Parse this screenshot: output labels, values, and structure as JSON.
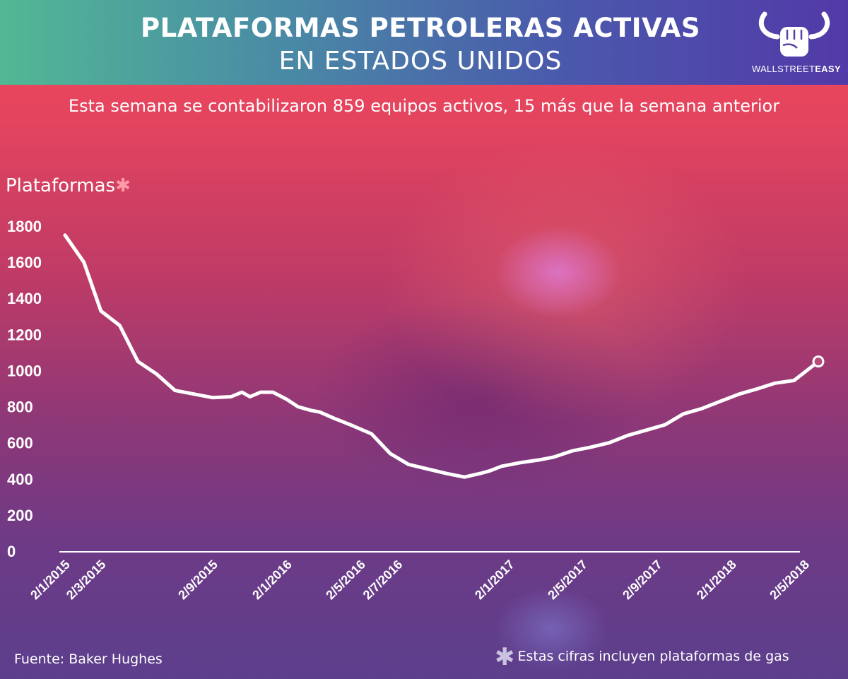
{
  "header": {
    "title_line1": "PLATAFORMAS PETROLERAS ACTIVAS",
    "title_line2": "EN ESTADOS UNIDOS"
  },
  "logo": {
    "icon": "fist-bull-horns-icon",
    "text_light": "WALLSTREET",
    "text_bold": "EASY"
  },
  "subtitle": "Esta semana se contabilizaron 859 equipos activos, 15 más que la semana anterior",
  "footer": {
    "source": "Fuente: Baker Hughes",
    "note_star": "✱",
    "note": "Estas cifras incluyen plataformas de gas"
  },
  "colors": {
    "line": "#ffffff",
    "header_left": "#52b894",
    "header_right": "#5239a8",
    "background_top": "#f04a5a",
    "background_bottom": "#5c3f8c",
    "asterisk": "#ff9aa8"
  },
  "chart_data": {
    "type": "line",
    "title": "",
    "ylabel": "Plataformas",
    "ylabel_marker": "✱",
    "xlabel": "",
    "ylim": [
      0,
      1800
    ],
    "yticks": [
      0,
      200,
      400,
      600,
      800,
      1000,
      1200,
      1400,
      1600,
      1800
    ],
    "xlim": [
      "2015-01-02",
      "2018-05-25"
    ],
    "xticks": [
      {
        "date": "2015-01-02",
        "label": "2/1/2015"
      },
      {
        "date": "2015-03-02",
        "label": "2/3/2015"
      },
      {
        "date": "2015-09-02",
        "label": "2/9/2015"
      },
      {
        "date": "2016-01-02",
        "label": "2/1/2016"
      },
      {
        "date": "2016-05-02",
        "label": "2/5/2016"
      },
      {
        "date": "2016-07-02",
        "label": "2/7/2016"
      },
      {
        "date": "2017-01-02",
        "label": "2/1/2017"
      },
      {
        "date": "2017-05-02",
        "label": "2/5/2017"
      },
      {
        "date": "2017-09-02",
        "label": "2/9/2017"
      },
      {
        "date": "2018-01-02",
        "label": "2/1/2018"
      },
      {
        "date": "2018-05-02",
        "label": "2/5/2018"
      }
    ],
    "grid": false,
    "end_marker": "open-circle",
    "series": [
      {
        "values": [
          [
            "2015-01-02",
            1750
          ],
          [
            "2015-02-02",
            1600
          ],
          [
            "2015-03-02",
            1330
          ],
          [
            "2015-04-02",
            1250
          ],
          [
            "2015-05-02",
            1050
          ],
          [
            "2015-06-02",
            980
          ],
          [
            "2015-07-02",
            890
          ],
          [
            "2015-08-02",
            870
          ],
          [
            "2015-09-02",
            850
          ],
          [
            "2015-10-02",
            855
          ],
          [
            "2015-10-20",
            880
          ],
          [
            "2015-11-02",
            855
          ],
          [
            "2015-11-20",
            880
          ],
          [
            "2015-12-10",
            880
          ],
          [
            "2016-01-02",
            840
          ],
          [
            "2016-01-20",
            800
          ],
          [
            "2016-02-10",
            780
          ],
          [
            "2016-02-25",
            770
          ],
          [
            "2016-03-20",
            735
          ],
          [
            "2016-04-15",
            700
          ],
          [
            "2016-05-20",
            650
          ],
          [
            "2016-06-20",
            540
          ],
          [
            "2016-07-20",
            480
          ],
          [
            "2016-08-20",
            455
          ],
          [
            "2016-09-20",
            430
          ],
          [
            "2016-10-20",
            410
          ],
          [
            "2016-11-15",
            430
          ],
          [
            "2016-12-01",
            445
          ],
          [
            "2016-12-20",
            470
          ],
          [
            "2017-01-20",
            490
          ],
          [
            "2017-02-20",
            505
          ],
          [
            "2017-03-15",
            520
          ],
          [
            "2017-04-15",
            555
          ],
          [
            "2017-05-15",
            575
          ],
          [
            "2017-06-15",
            600
          ],
          [
            "2017-07-15",
            640
          ],
          [
            "2017-08-15",
            670
          ],
          [
            "2017-09-15",
            700
          ],
          [
            "2017-10-15",
            760
          ],
          [
            "2017-11-15",
            790
          ],
          [
            "2017-12-15",
            830
          ],
          [
            "2018-01-15",
            870
          ],
          [
            "2018-02-15",
            900
          ],
          [
            "2018-03-15",
            930
          ],
          [
            "2018-04-15",
            945
          ],
          [
            "2018-05-25",
            1050
          ]
        ]
      }
    ]
  }
}
